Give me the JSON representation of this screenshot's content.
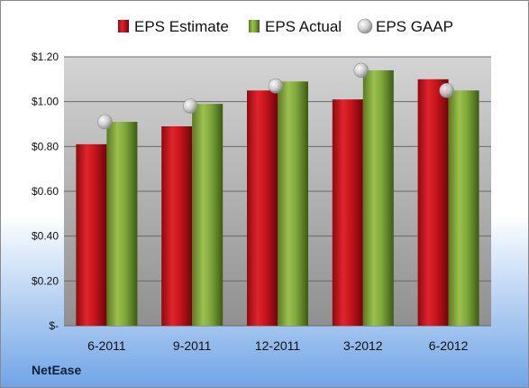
{
  "chart_data": {
    "type": "bar",
    "categories": [
      "6-2011",
      "9-2011",
      "12-2011",
      "3-2012",
      "6-2012"
    ],
    "series": [
      {
        "name": "EPS Estimate",
        "kind": "bar",
        "color": "#c0141c",
        "values": [
          0.81,
          0.89,
          1.05,
          1.01,
          1.1
        ]
      },
      {
        "name": "EPS Actual",
        "kind": "bar",
        "color": "#7da03a",
        "values": [
          0.91,
          0.99,
          1.09,
          1.14,
          1.05
        ]
      },
      {
        "name": "EPS GAAP",
        "kind": "marker",
        "color": "#c8c8c8",
        "values": [
          0.91,
          0.98,
          1.07,
          1.14,
          1.05
        ]
      }
    ],
    "yticks": [
      {
        "value": 0.0,
        "label": "$-"
      },
      {
        "value": 0.2,
        "label": "$0.20"
      },
      {
        "value": 0.4,
        "label": "$0.40"
      },
      {
        "value": 0.6,
        "label": "$0.60"
      },
      {
        "value": 0.8,
        "label": "$0.80"
      },
      {
        "value": 1.0,
        "label": "$1.00"
      },
      {
        "value": 1.2,
        "label": "$1.20"
      }
    ],
    "ylim": [
      0,
      1.2
    ],
    "grid": true,
    "legend": "top-center",
    "company": "NetEase",
    "background_colors": {
      "top": "#ffffff",
      "bottom": "#6fa3e6",
      "plot_top": "#d4d4d4",
      "plot_bottom": "#909090"
    }
  }
}
